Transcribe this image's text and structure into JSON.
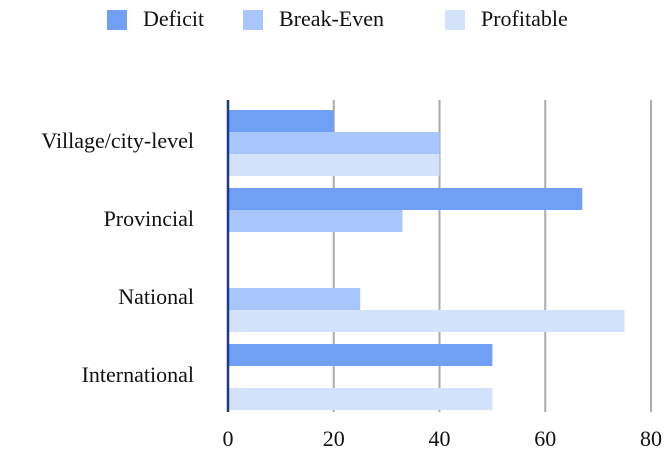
{
  "chart_data": {
    "type": "bar",
    "orientation": "horizontal",
    "categories": [
      "Village/city-level",
      "Provincial",
      "National",
      "International"
    ],
    "series": [
      {
        "name": "Deficit",
        "color": "#6fa0f5",
        "values": [
          20,
          67,
          0,
          50
        ]
      },
      {
        "name": "Break-Even",
        "color": "#a9c6fa",
        "values": [
          40,
          33,
          25,
          0
        ]
      },
      {
        "name": "Profitable",
        "color": "#d4e2fc",
        "values": [
          40,
          0,
          75,
          50
        ]
      }
    ],
    "xlim": [
      0,
      80
    ],
    "xticks": [
      0,
      20,
      40,
      60,
      80
    ],
    "grid": true,
    "legend": "top"
  }
}
